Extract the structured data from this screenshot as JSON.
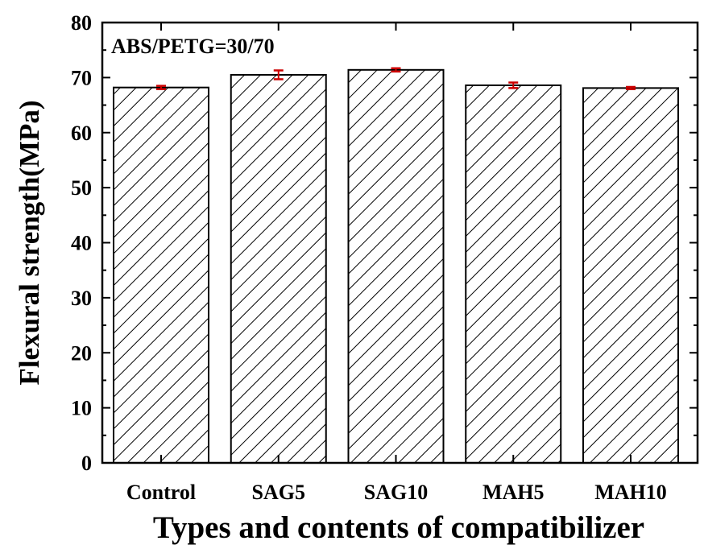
{
  "chart_data": {
    "type": "bar",
    "annotation": "ABS/PETG=30/70",
    "xlabel": "Types and contents of compatibilizer",
    "ylabel": "Flexural strength(MPa)",
    "categories": [
      "Control",
      "SAG5",
      "SAG10",
      "MAH5",
      "MAH10"
    ],
    "values": [
      68.2,
      70.5,
      71.4,
      68.6,
      68.1
    ],
    "errors": [
      0.3,
      0.8,
      0.3,
      0.5,
      0.2
    ],
    "ylim": [
      0,
      80
    ],
    "yticks": [
      "0",
      "10",
      "20",
      "30",
      "40",
      "50",
      "60",
      "70",
      "80"
    ],
    "grid": false,
    "bar_pattern": "diagonal-hatch",
    "colors": {
      "bar_fill": "#ffffff",
      "bar_stroke": "#000000",
      "hatch": "#000000",
      "error_bar": "#cc0000"
    }
  }
}
